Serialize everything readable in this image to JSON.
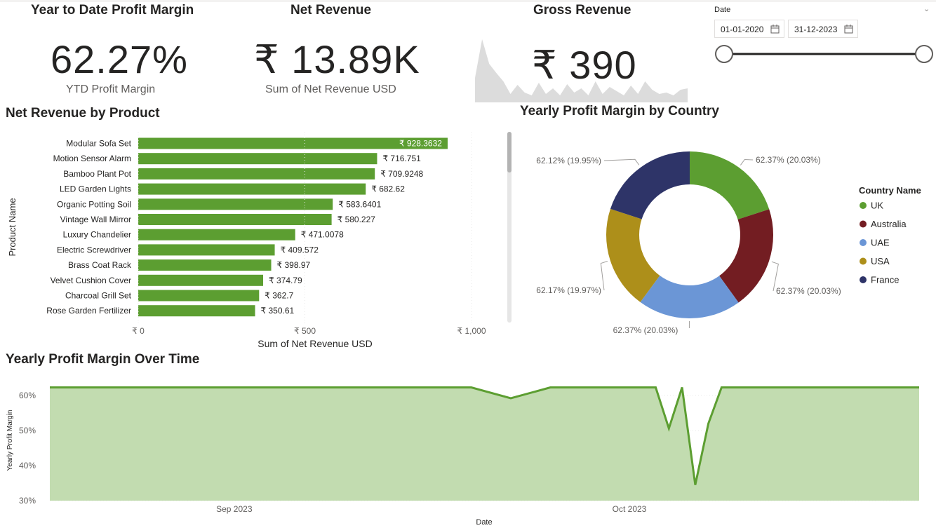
{
  "kpis": {
    "ytd": {
      "title": "Year to Date Profit Margin",
      "value": "62.27%",
      "label": "YTD Profit Margin"
    },
    "net": {
      "title": "Net Revenue",
      "value": "₹ 13.89K",
      "label": "Sum of Net Revenue USD"
    },
    "gross": {
      "title": "Gross Revenue",
      "value": "₹ 390",
      "sparkline_values": [
        35,
        90,
        55,
        42,
        30,
        12,
        25,
        14,
        10,
        28,
        12,
        20,
        10,
        26,
        14,
        20,
        10,
        30,
        12,
        22,
        16,
        10,
        24,
        12,
        30,
        18,
        12,
        14,
        10,
        18,
        20
      ]
    }
  },
  "slicer": {
    "label": "Date",
    "start": "01-01-2020",
    "end": "31-12-2023",
    "chevron": "chevron-down-icon",
    "calendar_icon": "calendar-icon"
  },
  "colors": {
    "bar": "#5c9e31",
    "area_fill": "#c2dcb0",
    "area_line": "#5c9e31",
    "uk": "#5c9e31",
    "australia": "#731d22",
    "uae": "#6b96d6",
    "usa": "#ad8f1a",
    "france": "#2e3468"
  },
  "chart_data": [
    {
      "type": "bar",
      "title": "Net Revenue by Product",
      "xlabel": "Sum of Net Revenue USD",
      "ylabel": "Product Name",
      "xlim": [
        0,
        1000
      ],
      "x_ticks": [
        "₹ 0",
        "₹ 500",
        "₹ 1,000"
      ],
      "categories": [
        "Modular Sofa Set",
        "Motion Sensor Alarm",
        "Bamboo Plant Pot",
        "LED Garden Lights",
        "Organic Potting Soil",
        "Vintage Wall Mirror",
        "Luxury Chandelier",
        "Electric Screwdriver",
        "Brass Coat Rack",
        "Velvet Cushion Cover",
        "Charcoal Grill Set",
        "Rose Garden Fertilizer"
      ],
      "values": [
        928.3632,
        716.751,
        709.9248,
        682.62,
        583.6401,
        580.227,
        471.0078,
        409.572,
        398.97,
        374.79,
        362.7,
        350.61
      ],
      "data_labels": [
        "₹ 928.3632",
        "₹ 716.751",
        "₹ 709.9248",
        "₹ 682.62",
        "₹ 583.6401",
        "₹ 580.227",
        "₹ 471.0078",
        "₹ 409.572",
        "₹ 398.97",
        "₹ 374.79",
        "₹ 362.7",
        "₹ 350.61"
      ]
    },
    {
      "type": "pie",
      "title": "Yearly Profit Margin by Country",
      "legend_title": "Country Name",
      "legend_position": "right",
      "labels": [
        "UK",
        "Australia",
        "UAE",
        "USA",
        "France"
      ],
      "values": [
        20.03,
        20.03,
        20.03,
        19.97,
        19.95
      ],
      "data_labels": [
        "62.37% (20.03%)",
        "62.37% (20.03%)",
        "62.37% (20.03%)",
        "62.17% (19.97%)",
        "62.12% (19.95%)"
      ]
    },
    {
      "type": "area",
      "title": "Yearly Profit Margin Over Time",
      "xlabel": "Date",
      "ylabel": "Yearly Profit Margin",
      "x_ticks": [
        "Sep 2023",
        "Oct 2023"
      ],
      "y_ticks": [
        "60%",
        "50%",
        "40%",
        "30%"
      ],
      "ylim": [
        30,
        65
      ],
      "x": [
        "2023-08-18",
        "2023-08-29",
        "2023-09-09",
        "2023-09-19",
        "2023-09-22",
        "2023-09-25",
        "2023-09-30",
        "2023-10-03",
        "2023-10-04",
        "2023-10-05",
        "2023-10-06",
        "2023-10-07",
        "2023-10-08",
        "2023-10-11",
        "2023-10-14",
        "2023-10-18",
        "2023-10-23"
      ],
      "values": [
        62.3,
        62.3,
        62.3,
        62.3,
        59.2,
        62.3,
        62.3,
        62.3,
        50.6,
        62.3,
        34.5,
        52.0,
        62.3,
        62.3,
        62.3,
        62.3,
        62.3
      ]
    }
  ]
}
